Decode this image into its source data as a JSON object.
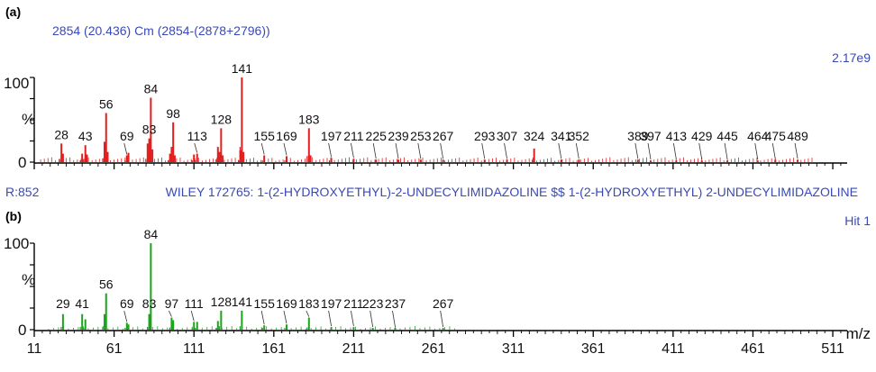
{
  "colors": {
    "top_series": "#e21e1e",
    "bottom_series": "#1aa51a",
    "header_text": "#3a49b8",
    "axis": "#000000"
  },
  "chart_data": [
    {
      "type": "bar",
      "panel_label": "(a)",
      "header": "2854 (20.436) Cm (2854-(2878+2796))",
      "scale_label": "2.17e9",
      "ylabel": "%",
      "y_ticks": [
        "100",
        "0"
      ],
      "ylim": [
        0,
        100
      ],
      "xlim": [
        11,
        520
      ],
      "sample_label": "R:852",
      "library_match": "WILEY  172765: 1-(2-HYDROXYETHYL)-2-UNDECYLIMIDAZOLINE $$ 1-(2-HYDROXYETHYL) 2-UNDECYLIMIDAZOLINE",
      "peaks": [
        {
          "mz": 28,
          "intensity": 22,
          "label": "28"
        },
        {
          "mz": 29,
          "intensity": 10,
          "label": ""
        },
        {
          "mz": 41,
          "intensity": 10,
          "label": ""
        },
        {
          "mz": 43,
          "intensity": 20,
          "label": "43"
        },
        {
          "mz": 44,
          "intensity": 9,
          "label": ""
        },
        {
          "mz": 55,
          "intensity": 24,
          "label": ""
        },
        {
          "mz": 56,
          "intensity": 58,
          "label": "56"
        },
        {
          "mz": 57,
          "intensity": 12,
          "label": ""
        },
        {
          "mz": 69,
          "intensity": 8,
          "label": "69"
        },
        {
          "mz": 70,
          "intensity": 11,
          "label": ""
        },
        {
          "mz": 82,
          "intensity": 22,
          "label": ""
        },
        {
          "mz": 83,
          "intensity": 28,
          "label": "83"
        },
        {
          "mz": 84,
          "intensity": 76,
          "label": "84"
        },
        {
          "mz": 85,
          "intensity": 15,
          "label": ""
        },
        {
          "mz": 96,
          "intensity": 10,
          "label": ""
        },
        {
          "mz": 97,
          "intensity": 18,
          "label": ""
        },
        {
          "mz": 98,
          "intensity": 47,
          "label": "98"
        },
        {
          "mz": 99,
          "intensity": 8,
          "label": ""
        },
        {
          "mz": 111,
          "intensity": 9,
          "label": ""
        },
        {
          "mz": 113,
          "intensity": 10,
          "label": "113"
        },
        {
          "mz": 126,
          "intensity": 18,
          "label": ""
        },
        {
          "mz": 127,
          "intensity": 12,
          "label": ""
        },
        {
          "mz": 128,
          "intensity": 40,
          "label": "128"
        },
        {
          "mz": 129,
          "intensity": 8,
          "label": ""
        },
        {
          "mz": 140,
          "intensity": 14,
          "label": ""
        },
        {
          "mz": 141,
          "intensity": 100,
          "label": "141"
        },
        {
          "mz": 142,
          "intensity": 12,
          "label": ""
        },
        {
          "mz": 155,
          "intensity": 8,
          "label": "155"
        },
        {
          "mz": 169,
          "intensity": 7,
          "label": "169"
        },
        {
          "mz": 183,
          "intensity": 40,
          "label": "183"
        },
        {
          "mz": 184,
          "intensity": 8,
          "label": ""
        },
        {
          "mz": 197,
          "intensity": 5,
          "label": "197"
        },
        {
          "mz": 211,
          "intensity": 4,
          "label": "211"
        },
        {
          "mz": 225,
          "intensity": 3,
          "label": "225"
        },
        {
          "mz": 239,
          "intensity": 3,
          "label": "239"
        },
        {
          "mz": 253,
          "intensity": 3,
          "label": "253"
        },
        {
          "mz": 267,
          "intensity": 3,
          "label": "267"
        },
        {
          "mz": 293,
          "intensity": 3,
          "label": "293"
        },
        {
          "mz": 307,
          "intensity": 3,
          "label": "307"
        },
        {
          "mz": 324,
          "intensity": 16,
          "label": "324"
        },
        {
          "mz": 341,
          "intensity": 3,
          "label": "341"
        },
        {
          "mz": 352,
          "intensity": 3,
          "label": "352"
        },
        {
          "mz": 389,
          "intensity": 3,
          "label": "389"
        },
        {
          "mz": 397,
          "intensity": 2,
          "label": "397"
        },
        {
          "mz": 413,
          "intensity": 2,
          "label": "413"
        },
        {
          "mz": 429,
          "intensity": 2,
          "label": "429"
        },
        {
          "mz": 445,
          "intensity": 2,
          "label": "445"
        },
        {
          "mz": 464,
          "intensity": 2,
          "label": "464"
        },
        {
          "mz": 475,
          "intensity": 3,
          "label": "475"
        },
        {
          "mz": 489,
          "intensity": 3,
          "label": "489"
        }
      ]
    },
    {
      "type": "bar",
      "panel_label": "(b)",
      "scale_label": "Hit 1",
      "ylabel": "%",
      "y_ticks": [
        "100",
        "0"
      ],
      "ylim": [
        0,
        100
      ],
      "xlabel": "m/z",
      "x_ticks": [
        11,
        61,
        111,
        161,
        211,
        261,
        311,
        361,
        411,
        461,
        511
      ],
      "xlim": [
        11,
        520
      ],
      "peaks": [
        {
          "mz": 29,
          "intensity": 18,
          "label": "29"
        },
        {
          "mz": 41,
          "intensity": 18,
          "label": "41"
        },
        {
          "mz": 43,
          "intensity": 12,
          "label": ""
        },
        {
          "mz": 55,
          "intensity": 18,
          "label": ""
        },
        {
          "mz": 56,
          "intensity": 42,
          "label": "56"
        },
        {
          "mz": 69,
          "intensity": 8,
          "label": "69"
        },
        {
          "mz": 70,
          "intensity": 6,
          "label": ""
        },
        {
          "mz": 83,
          "intensity": 18,
          "label": "83"
        },
        {
          "mz": 84,
          "intensity": 100,
          "label": "84"
        },
        {
          "mz": 97,
          "intensity": 14,
          "label": "97"
        },
        {
          "mz": 98,
          "intensity": 11,
          "label": ""
        },
        {
          "mz": 111,
          "intensity": 9,
          "label": "111"
        },
        {
          "mz": 113,
          "intensity": 9,
          "label": ""
        },
        {
          "mz": 126,
          "intensity": 10,
          "label": ""
        },
        {
          "mz": 128,
          "intensity": 22,
          "label": "128"
        },
        {
          "mz": 141,
          "intensity": 22,
          "label": "141"
        },
        {
          "mz": 155,
          "intensity": 5,
          "label": "155"
        },
        {
          "mz": 169,
          "intensity": 6,
          "label": "169"
        },
        {
          "mz": 183,
          "intensity": 14,
          "label": "183"
        },
        {
          "mz": 197,
          "intensity": 3,
          "label": "197"
        },
        {
          "mz": 211,
          "intensity": 3,
          "label": "211"
        },
        {
          "mz": 223,
          "intensity": 2,
          "label": "223"
        },
        {
          "mz": 237,
          "intensity": 2,
          "label": "237"
        },
        {
          "mz": 267,
          "intensity": 2,
          "label": "267"
        }
      ]
    }
  ]
}
